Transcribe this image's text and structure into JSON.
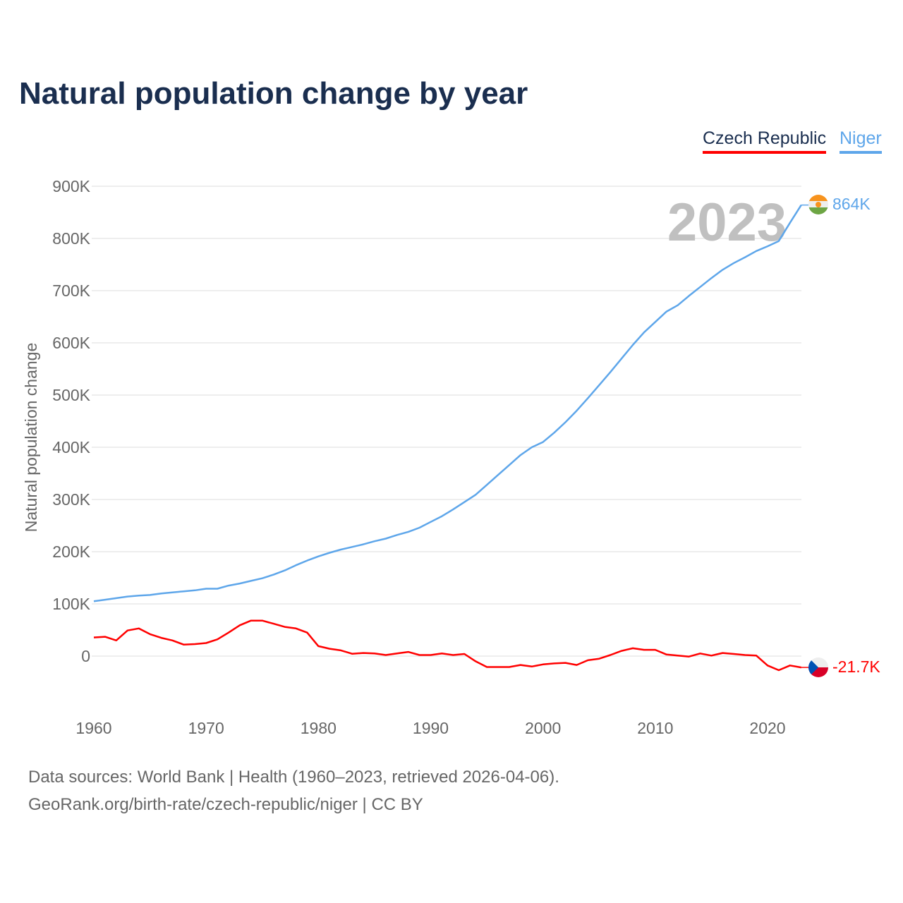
{
  "title": "Natural population change by year",
  "legend": [
    {
      "label": "Czech Republic",
      "color": "#ff0000"
    },
    {
      "label": "Niger",
      "color": "#5ea6ea"
    }
  ],
  "year_watermark": "2023",
  "footer": {
    "line1": "Data sources: World Bank | Health (1960–2023, retrieved 2026-04-06).",
    "line2": "GeoRank.org/birth-rate/czech-republic/niger | CC BY"
  },
  "chart_data": {
    "type": "line",
    "title": "Natural population change by year",
    "xlabel": "",
    "ylabel": "Natural population change",
    "xlim": [
      1960,
      2023
    ],
    "ylim": [
      -100000,
      900000
    ],
    "x_ticks": [
      1960,
      1970,
      1980,
      1990,
      2000,
      2010,
      2020
    ],
    "x_tick_labels": [
      "1960",
      "1970",
      "1980",
      "1990",
      "2000",
      "2010",
      "2020"
    ],
    "y_ticks": [
      0,
      100000,
      200000,
      300000,
      400000,
      500000,
      600000,
      700000,
      800000,
      900000
    ],
    "y_tick_labels": [
      "0",
      "100K",
      "200K",
      "300K",
      "400K",
      "500K",
      "600K",
      "700K",
      "800K",
      "900K"
    ],
    "grid": true,
    "legend_position": "top-right",
    "x_start": 1960,
    "series": [
      {
        "name": "Czech Republic",
        "color": "#ff0000",
        "end_label": "-21.7K",
        "values": [
          35700,
          37000,
          30000,
          49000,
          53000,
          42000,
          35000,
          30000,
          22000,
          23000,
          25000,
          32000,
          45000,
          59000,
          68000,
          68000,
          62000,
          56000,
          53000,
          45000,
          19000,
          14000,
          11000,
          4500,
          6000,
          5000,
          2000,
          5000,
          8000,
          2000,
          2000,
          5000,
          2000,
          4000,
          -10000,
          -21000,
          -21000,
          -21000,
          -17000,
          -20000,
          -16000,
          -14000,
          -13000,
          -17000,
          -8000,
          -5000,
          2000,
          10000,
          15000,
          12000,
          12000,
          3000,
          1000,
          -1000,
          5000,
          1000,
          6000,
          4000,
          2000,
          1000,
          -18000,
          -27000,
          -18000,
          -21700
        ]
      },
      {
        "name": "Niger",
        "color": "#5ea6ea",
        "end_label": "864K",
        "values": [
          105000,
          108000,
          111000,
          114000,
          116000,
          117000,
          120000,
          122000,
          124000,
          126000,
          129000,
          129000,
          135000,
          139000,
          144000,
          149000,
          156000,
          164000,
          174000,
          183000,
          191000,
          198000,
          204000,
          209000,
          214000,
          220000,
          225000,
          232000,
          238000,
          246000,
          257000,
          268000,
          281000,
          295000,
          309000,
          328000,
          347000,
          366000,
          385000,
          400000,
          410000,
          428000,
          448000,
          470000,
          494000,
          519000,
          544000,
          570000,
          596000,
          620000,
          640000,
          660000,
          672000,
          690000,
          707000,
          724000,
          740000,
          753000,
          764000,
          776000,
          785000,
          795000,
          830000,
          864000
        ]
      }
    ]
  }
}
